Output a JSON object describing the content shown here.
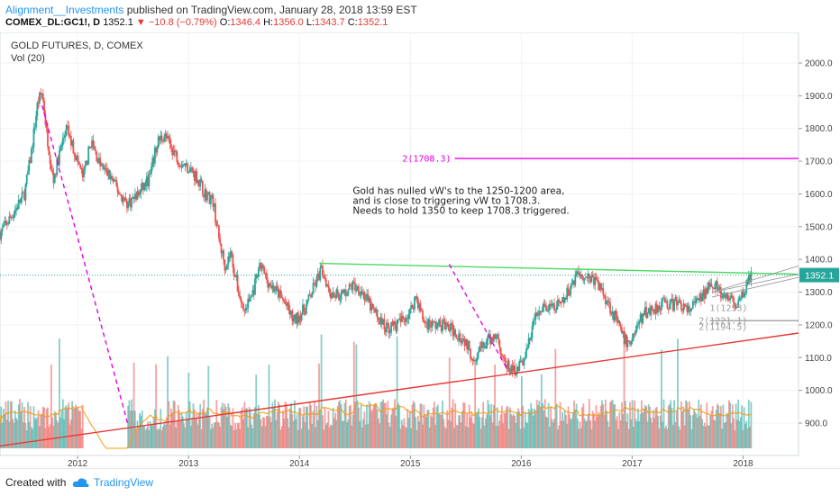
{
  "header": {
    "author": "Alignment__Investments",
    "published": " published on TradingView.com, January 28, 2018 13:59 EST",
    "symbol": "COMEX_DL:GC1!, D",
    "last": "1352.1",
    "change": "−10.8 (−0.79%)",
    "o_label": "O:",
    "o_val": "1346.4",
    "h_label": "H:",
    "h_val": "1356.0",
    "l_label": "L:",
    "l_val": "1343.7",
    "c_label": "C:",
    "c_val": "1352.1"
  },
  "footer": {
    "created": "Created with",
    "brand": "TradingView"
  },
  "colors": {
    "up": "#26a69a",
    "down": "#ef5350",
    "magenta": "#e600e6",
    "green_line": "#4cd964",
    "red_line": "#e53935",
    "vol_ma": "#f39c12"
  },
  "chart_data": {
    "type": "candlestick",
    "title": "GOLD FUTURES, D, COMEX",
    "indicator": "Vol (20)",
    "price_axis": {
      "min": 800,
      "max": 2100,
      "ticks": [
        900,
        1000,
        1100,
        1200,
        1300,
        1400,
        1500,
        1600,
        1700,
        1800,
        1900,
        2000
      ],
      "tick_labels": [
        "900.0",
        "1000.0",
        "1100.0",
        "1200.0",
        "1300.0",
        "1400.0",
        "1500.0",
        "1600.0",
        "1700.0",
        "1800.0",
        "1900.0",
        "2000.0"
      ]
    },
    "time_axis": {
      "start": 2011.3,
      "end": 2018.5,
      "ticks": [
        2012,
        2013,
        2014,
        2015,
        2016,
        2017,
        2018
      ],
      "tick_labels": [
        "2012",
        "2013",
        "2014",
        "2015",
        "2016",
        "2017",
        "2018"
      ]
    },
    "current_price": 1352.1,
    "current_price_label": "1352.1",
    "price_path": [
      [
        2011.3,
        1480
      ],
      [
        2011.38,
        1520
      ],
      [
        2011.45,
        1560
      ],
      [
        2011.52,
        1600
      ],
      [
        2011.58,
        1720
      ],
      [
        2011.64,
        1880
      ],
      [
        2011.68,
        1910
      ],
      [
        2011.72,
        1790
      ],
      [
        2011.78,
        1640
      ],
      [
        2011.84,
        1730
      ],
      [
        2011.9,
        1800
      ],
      [
        2011.98,
        1720
      ],
      [
        2012.05,
        1650
      ],
      [
        2012.12,
        1760
      ],
      [
        2012.2,
        1690
      ],
      [
        2012.3,
        1650
      ],
      [
        2012.38,
        1600
      ],
      [
        2012.45,
        1570
      ],
      [
        2012.55,
        1600
      ],
      [
        2012.65,
        1650
      ],
      [
        2012.72,
        1760
      ],
      [
        2012.78,
        1780
      ],
      [
        2012.85,
        1740
      ],
      [
        2012.92,
        1700
      ],
      [
        2013.0,
        1680
      ],
      [
        2013.08,
        1650
      ],
      [
        2013.15,
        1600
      ],
      [
        2013.22,
        1580
      ],
      [
        2013.28,
        1450
      ],
      [
        2013.33,
        1380
      ],
      [
        2013.38,
        1420
      ],
      [
        2013.45,
        1300
      ],
      [
        2013.5,
        1240
      ],
      [
        2013.58,
        1300
      ],
      [
        2013.65,
        1380
      ],
      [
        2013.72,
        1330
      ],
      [
        2013.8,
        1300
      ],
      [
        2013.88,
        1260
      ],
      [
        2013.95,
        1210
      ],
      [
        2014.05,
        1250
      ],
      [
        2014.15,
        1330
      ],
      [
        2014.2,
        1370
      ],
      [
        2014.28,
        1300
      ],
      [
        2014.38,
        1290
      ],
      [
        2014.48,
        1320
      ],
      [
        2014.55,
        1310
      ],
      [
        2014.65,
        1250
      ],
      [
        2014.78,
        1190
      ],
      [
        2014.88,
        1200
      ],
      [
        2015.0,
        1240
      ],
      [
        2015.05,
        1290
      ],
      [
        2015.12,
        1210
      ],
      [
        2015.2,
        1200
      ],
      [
        2015.3,
        1200
      ],
      [
        2015.4,
        1180
      ],
      [
        2015.5,
        1150
      ],
      [
        2015.56,
        1100
      ],
      [
        2015.62,
        1120
      ],
      [
        2015.7,
        1150
      ],
      [
        2015.78,
        1170
      ],
      [
        2015.85,
        1080
      ],
      [
        2015.92,
        1060
      ],
      [
        2016.0,
        1080
      ],
      [
        2016.05,
        1120
      ],
      [
        2016.12,
        1220
      ],
      [
        2016.2,
        1250
      ],
      [
        2016.3,
        1250
      ],
      [
        2016.38,
        1270
      ],
      [
        2016.45,
        1320
      ],
      [
        2016.5,
        1360
      ],
      [
        2016.58,
        1350
      ],
      [
        2016.65,
        1340
      ],
      [
        2016.72,
        1310
      ],
      [
        2016.78,
        1270
      ],
      [
        2016.85,
        1220
      ],
      [
        2016.92,
        1160
      ],
      [
        2016.97,
        1140
      ],
      [
        2017.05,
        1200
      ],
      [
        2017.12,
        1240
      ],
      [
        2017.2,
        1250
      ],
      [
        2017.28,
        1270
      ],
      [
        2017.35,
        1260
      ],
      [
        2017.42,
        1270
      ],
      [
        2017.5,
        1240
      ],
      [
        2017.58,
        1270
      ],
      [
        2017.65,
        1290
      ],
      [
        2017.7,
        1340
      ],
      [
        2017.75,
        1320
      ],
      [
        2017.82,
        1280
      ],
      [
        2017.9,
        1280
      ],
      [
        2017.95,
        1250
      ],
      [
        2018.0,
        1300
      ],
      [
        2018.05,
        1340
      ],
      [
        2018.08,
        1352
      ]
    ],
    "lines": [
      {
        "name": "rising support",
        "color": "#e53935",
        "from": [
          2011.3,
          830
        ],
        "to": [
          2018.5,
          1175
        ]
      },
      {
        "name": "horizontal resistance",
        "color": "#4cd964",
        "from": [
          2014.18,
          1388
        ],
        "to": [
          2018.5,
          1355
        ]
      },
      {
        "name": "target level",
        "color": "#e600e6",
        "from": [
          2015.4,
          1708.3
        ],
        "to": [
          2018.5,
          1708.3
        ]
      },
      {
        "name": "dashed projection 1",
        "color": "#e600e6",
        "dash": true,
        "from": [
          2011.68,
          1870
        ],
        "to": [
          2012.45,
          900
        ]
      },
      {
        "name": "dashed projection 2",
        "color": "#e600e6",
        "dash": true,
        "from": [
          2015.35,
          1385
        ],
        "to": [
          2015.88,
          1060
        ]
      },
      {
        "name": "grey level",
        "color": "#9e9e9e",
        "from": [
          2017.7,
          1213
        ],
        "to": [
          2018.5,
          1213
        ]
      }
    ],
    "level_label": "2(1708.3)",
    "level_labels_small": [
      "2(1221.1)",
      "2(1194.5)",
      "1(1253)"
    ],
    "annotation": [
      "Gold has nulled vW's to the 1250-1200 area,",
      "and is close to triggering vW to 1708.3.",
      "Needs to hold 1350 to keep 1708.3 triggered."
    ]
  }
}
